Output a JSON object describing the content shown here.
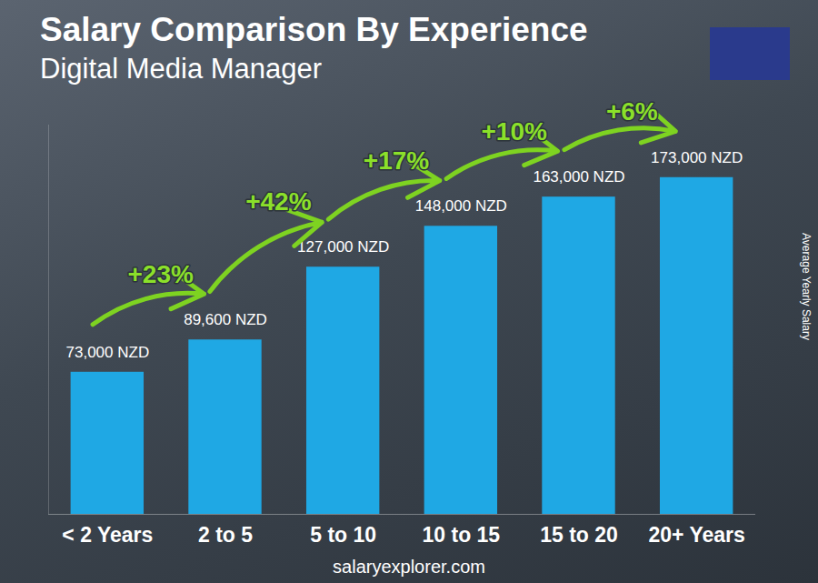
{
  "chart_data": {
    "type": "bar",
    "title": "Salary Comparison By Experience",
    "subtitle": "Digital Media Manager",
    "y_label": "Average Yearly Salary",
    "source": "salaryexplorer.com",
    "categories": [
      "< 2 Years",
      "2 to 5",
      "5 to 10",
      "10 to 15",
      "15 to 20",
      "20+ Years"
    ],
    "values": [
      73000,
      89600,
      127000,
      148000,
      163000,
      173000
    ],
    "value_labels": [
      "73,000 NZD",
      "89,600 NZD",
      "127,000 NZD",
      "148,000 NZD",
      "163,000 NZD",
      "173,000 NZD"
    ],
    "annotations": [
      "+23%",
      "+42%",
      "+17%",
      "+10%",
      "+6%"
    ],
    "color": "#1fa8e4",
    "ylim": [
      0,
      200000
    ],
    "yticks": [
      0
    ],
    "grid": false,
    "data_labels": true,
    "tick_labels": "x"
  }
}
